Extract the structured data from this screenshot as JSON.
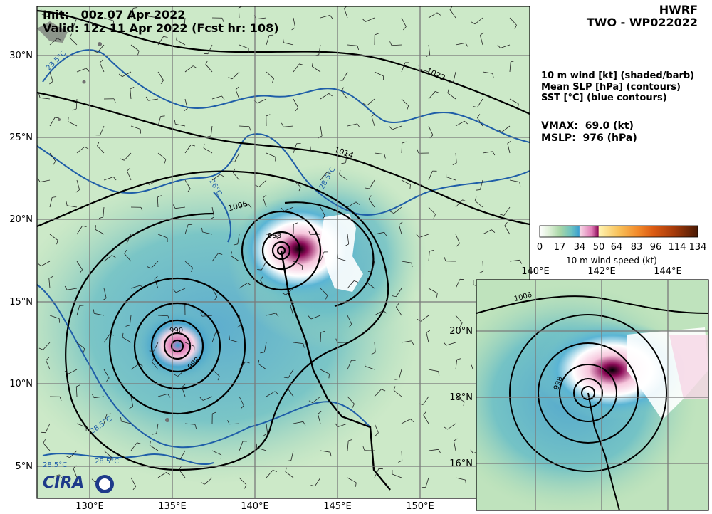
{
  "header": {
    "init": "Init:   00z 07 Apr 2022",
    "valid": "Valid: 12z 11 Apr 2022 (Fcst hr: 108)",
    "model": "HWRF",
    "storm": "TWO - WP022022"
  },
  "legend_text": {
    "line1": "10 m wind [kt] (shaded/barb)",
    "line2": "Mean SLP [hPa] (contours)",
    "line3": "SST [°C] (blue contours)",
    "vmax": "VMAX:  69.0 (kt)",
    "mslp": "MSLP:  976 (hPa)"
  },
  "colorbar": {
    "ticks": [
      "0",
      "17",
      "34",
      "50",
      "64",
      "83",
      "96",
      "114",
      "134"
    ],
    "label": "10 m wind speed (kt)"
  },
  "main_map": {
    "lon_labels": [
      "130°E",
      "135°E",
      "140°E",
      "145°E",
      "150°E"
    ],
    "lat_labels": [
      "30°N",
      "25°N",
      "20°N",
      "15°N",
      "10°N",
      "5°N"
    ],
    "slp_contour_labels": [
      "1022",
      "1014",
      "1006",
      "998",
      "990",
      "998"
    ],
    "sst_contour_labels": [
      "23.5°C",
      "26°C",
      "28.5°C",
      "28.5°C",
      "28.5°C",
      "28.5°C"
    ]
  },
  "inset_map": {
    "lon_labels": [
      "140°E",
      "142°E",
      "144°E"
    ],
    "lat_labels": [
      "20°N",
      "18°N",
      "16°N"
    ],
    "slp_contour_labels": [
      "1006",
      "998"
    ]
  },
  "logo": {
    "text": "CIRA"
  },
  "colors": {
    "background": "#ffffff",
    "slp_contour": "#000000",
    "sst_contour": "#1f5ea8",
    "land": "#707070"
  }
}
